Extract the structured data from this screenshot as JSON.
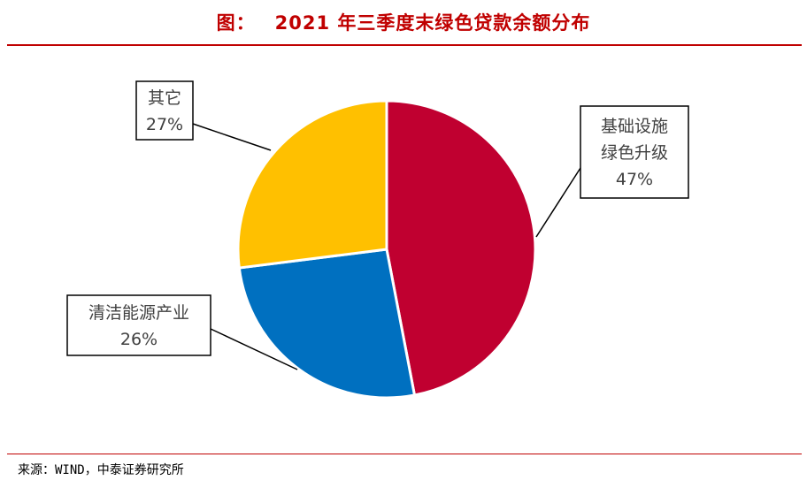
{
  "header": {
    "title_prefix": "图：",
    "title_main": "2021 年三季度末绿色贷款余额分布"
  },
  "footer": {
    "source": "来源：WIND，中泰证券研究所"
  },
  "colors": {
    "accent": "#c00000",
    "slice_infra": "#c00030",
    "slice_clean": "#0070c0",
    "slice_other": "#ffc000",
    "label_text": "#404040"
  },
  "chart_data": {
    "type": "pie",
    "title": "2021 年三季度末绿色贷款余额分布",
    "slices": [
      {
        "label_lines": [
          "基础设施",
          "绿色升级"
        ],
        "label": "基础设施绿色升级",
        "value": 47,
        "value_label": "47%",
        "color": "#c00030"
      },
      {
        "label_lines": [
          "清洁能源产业"
        ],
        "label": "清洁能源产业",
        "value": 26,
        "value_label": "26%",
        "color": "#0070c0"
      },
      {
        "label_lines": [
          "其它"
        ],
        "label": "其它",
        "value": 27,
        "value_label": "27%",
        "color": "#ffc000"
      }
    ],
    "start": "12 o'clock",
    "direction": "clockwise",
    "legend": "none",
    "labels": "callouts"
  }
}
